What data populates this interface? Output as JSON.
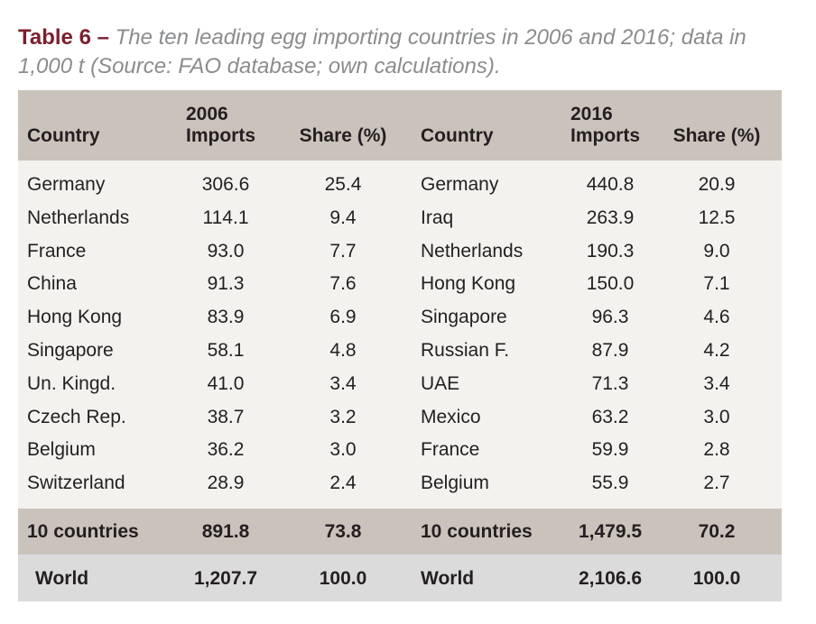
{
  "caption": {
    "label": "Table 6 –",
    "text": "The ten leading egg importing countries in 2006 and 2016; data in 1,000 t (Source: FAO database; own calculations)."
  },
  "header": {
    "country_a": "Country",
    "year_a": "2006",
    "imports_a": "Imports",
    "share_a": "Share (%)",
    "country_b": "Country",
    "year_b": "2016",
    "imports_b": "Imports",
    "share_b": "Share (%)"
  },
  "rows": [
    {
      "c2006": "Germany",
      "i2006": "306.6",
      "s2006": "25.4",
      "c2016": "Germany",
      "i2016": "440.8",
      "s2016": "20.9"
    },
    {
      "c2006": "Netherlands",
      "i2006": "114.1",
      "s2006": "9.4",
      "c2016": "Iraq",
      "i2016": "263.9",
      "s2016": "12.5"
    },
    {
      "c2006": "France",
      "i2006": "93.0",
      "s2006": "7.7",
      "c2016": "Netherlands",
      "i2016": "190.3",
      "s2016": "9.0"
    },
    {
      "c2006": "China",
      "i2006": "91.3",
      "s2006": "7.6",
      "c2016": "Hong Kong",
      "i2016": "150.0",
      "s2016": "7.1"
    },
    {
      "c2006": "Hong Kong",
      "i2006": "83.9",
      "s2006": "6.9",
      "c2016": "Singapore",
      "i2016": "96.3",
      "s2016": "4.6"
    },
    {
      "c2006": "Singapore",
      "i2006": "58.1",
      "s2006": "4.8",
      "c2016": "Russian F.",
      "i2016": "87.9",
      "s2016": "4.2"
    },
    {
      "c2006": "Un. Kingd.",
      "i2006": "41.0",
      "s2006": "3.4",
      "c2016": "UAE",
      "i2016": "71.3",
      "s2016": "3.4"
    },
    {
      "c2006": "Czech Rep.",
      "i2006": "38.7",
      "s2006": "3.2",
      "c2016": "Mexico",
      "i2016": "63.2",
      "s2016": "3.0"
    },
    {
      "c2006": "Belgium",
      "i2006": "36.2",
      "s2006": "3.0",
      "c2016": "France",
      "i2016": "59.9",
      "s2016": "2.8"
    },
    {
      "c2006": "Switzerland",
      "i2006": "28.9",
      "s2006": "2.4",
      "c2016": "Belgium",
      "i2016": "55.9",
      "s2016": "2.7"
    }
  ],
  "total10": {
    "c2006": "10 countries",
    "i2006": "891.8",
    "s2006": "73.8",
    "c2016": "10 countries",
    "i2016": "1,479.5",
    "s2016": "70.2"
  },
  "world": {
    "c2006": "World",
    "i2006": "1,207.7",
    "s2006": "100.0",
    "c2016": "World",
    "i2016": "2,106.6",
    "s2016": "100.0"
  },
  "colors": {
    "caption_label": "#7b1f2e",
    "caption_text": "#8a8c8e",
    "header_bg": "#c9c3bb",
    "body_bg": "#f4f2ef",
    "world_bg": "#dcdbdb"
  }
}
